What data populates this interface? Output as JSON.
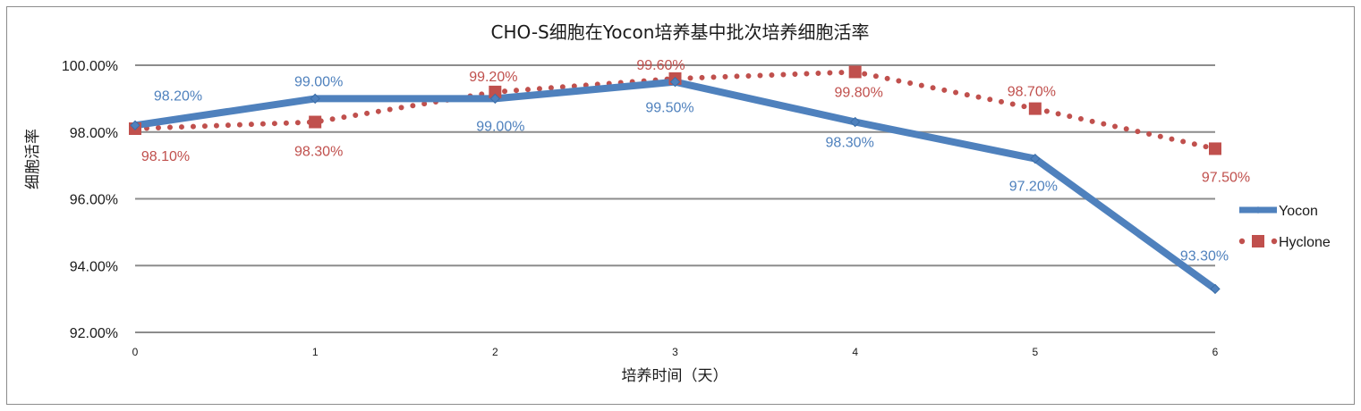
{
  "chart_data": {
    "type": "line",
    "title": "CHO-S细胞在Yocon培养基中批次培养细胞活率",
    "xlabel": "培养时间（天）",
    "ylabel": "细胞活率",
    "x": [
      0,
      1,
      2,
      3,
      4,
      5,
      6
    ],
    "x_tick_labels": [
      "0",
      "1",
      "2",
      "3",
      "4",
      "5",
      "6"
    ],
    "ylim": [
      92,
      100
    ],
    "y_ticks": [
      92,
      94,
      96,
      98,
      100
    ],
    "y_tick_labels": [
      "92.00%",
      "94.00%",
      "96.00%",
      "98.00%",
      "100.00%"
    ],
    "grid": "horizontal",
    "legend_position": "right",
    "series": [
      {
        "name": "Yocon",
        "color": "#4f81bd",
        "style": "solid",
        "marker": "diamond",
        "values": [
          98.2,
          99.0,
          99.0,
          99.5,
          98.3,
          97.2,
          93.3
        ],
        "labels": [
          "98.20%",
          "99.00%",
          "99.00%",
          "99.50%",
          "98.30%",
          "97.20%",
          "93.30%"
        ]
      },
      {
        "name": "Hyclone",
        "color": "#c0504d",
        "style": "dotted",
        "marker": "square",
        "values": [
          98.1,
          98.3,
          99.2,
          99.6,
          99.8,
          98.7,
          97.5
        ],
        "labels": [
          "98.10%",
          "98.30%",
          "99.20%",
          "99.60%",
          "99.80%",
          "98.70%",
          "97.50%"
        ]
      }
    ]
  }
}
